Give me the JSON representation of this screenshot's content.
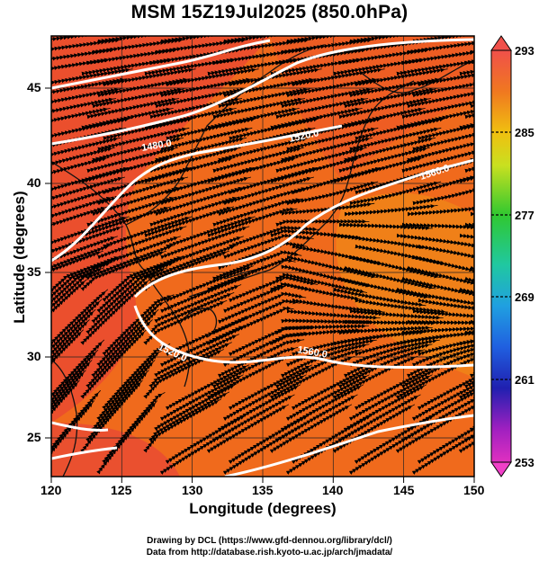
{
  "title": "MSM 15Z19Jul2025 (850.0hPa)",
  "xlabel": "Longitude (degrees)",
  "ylabel": "Latitude  (degrees)",
  "x_ticks": [
    "120",
    "125",
    "130",
    "135",
    "140",
    "145",
    "150"
  ],
  "y_ticks": [
    "25",
    "30",
    "35",
    "40",
    "45"
  ],
  "colorbar_ticks": [
    "293",
    "285",
    "277",
    "269",
    "261",
    "253"
  ],
  "contour_labels": [
    "1480.0",
    "1520.0",
    "1560.0",
    "1520.0",
    "1560.0"
  ],
  "credits": [
    "Drawing by DCL (https://www.gfd-dennou.org/library/dcl/)",
    "Data from http://database.rish.kyoto-u.ac.jp/arch/jmadata/"
  ],
  "chart_data": {
    "type": "heatmap",
    "title": "MSM 15Z19Jul2025 (850.0hPa)",
    "xlabel": "Longitude (degrees)",
    "ylabel": "Latitude  (degrees)",
    "xlim": [
      120,
      150
    ],
    "ylim": [
      22.5,
      48
    ],
    "x_ticks": [
      120,
      125,
      130,
      135,
      140,
      145,
      150
    ],
    "y_ticks": [
      25,
      30,
      35,
      40,
      45
    ],
    "colorbar": {
      "min": 253,
      "max": 293,
      "ticks": [
        293,
        285,
        277,
        269,
        261,
        253
      ]
    },
    "field_range_estimate": [
      287,
      293
    ],
    "contour_levels": [
      1480,
      1520,
      1560
    ],
    "grid": true,
    "colors": {
      "warm_high": "#e8403a",
      "warm_mid": "#f05a1e",
      "warm_low": "#f07818",
      "contour": "#ffffff",
      "streamline": "#000000"
    }
  }
}
